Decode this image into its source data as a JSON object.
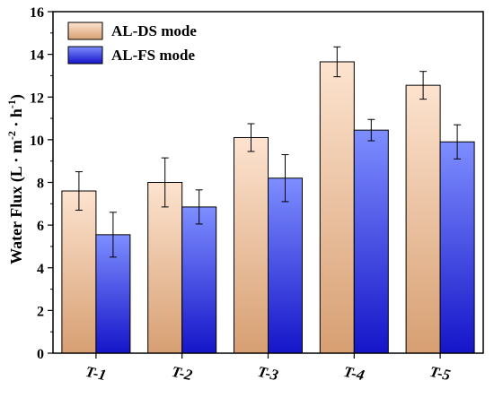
{
  "chart_data": {
    "type": "bar",
    "categories": [
      "T-1",
      "T-2",
      "T-3",
      "T-4",
      "T-5"
    ],
    "series": [
      {
        "name": "AL-DS mode",
        "values": [
          7.6,
          8.0,
          10.1,
          13.65,
          12.55
        ],
        "errors": [
          0.9,
          1.15,
          0.65,
          0.7,
          0.65
        ],
        "color_top": "#fde3cf",
        "color_bottom": "#d79f72"
      },
      {
        "name": "AL-FS mode",
        "values": [
          5.55,
          6.85,
          8.2,
          10.45,
          9.9
        ],
        "errors": [
          1.05,
          0.8,
          1.1,
          0.5,
          0.8
        ],
        "color_top": "#7e8eff",
        "color_bottom": "#1515c8"
      }
    ],
    "ylabel": "Water Flux (L · m",
    "ylabel_sup1": "-2",
    "ylabel_mid": " · h",
    "ylabel_sup2": "-1",
    "ylabel_end": ")",
    "ylim": [
      0,
      16
    ],
    "yticks": [
      "0",
      "2",
      "4",
      "6",
      "8",
      "10",
      "12",
      "14",
      "16"
    ],
    "legend_position": "top-left",
    "grid": false
  }
}
